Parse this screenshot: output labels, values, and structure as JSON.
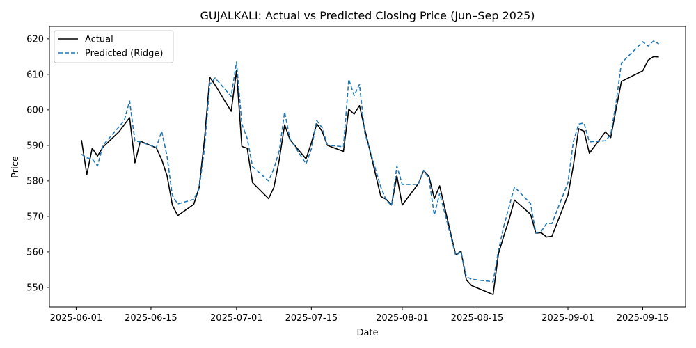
{
  "chart_data": {
    "type": "line",
    "title": "GUJALKALI: Actual vs Predicted Closing Price (Jun–Sep 2025)",
    "xlabel": "Date",
    "ylabel": "Price",
    "x_tick_labels": [
      "2025-06-01",
      "2025-06-15",
      "2025-07-01",
      "2025-07-15",
      "2025-08-01",
      "2025-08-15",
      "2025-09-01",
      "2025-09-15"
    ],
    "y_ticks": [
      550,
      560,
      570,
      580,
      590,
      600,
      610,
      620
    ],
    "xlim": [
      "2025-05-27",
      "2025-09-23"
    ],
    "ylim": [
      544.5,
      623.5
    ],
    "grid": false,
    "legend_position": "top-left",
    "series": [
      {
        "name": "Actual",
        "color": "#000000",
        "style": "solid",
        "points": [
          [
            "2025-06-02",
            591.5
          ],
          [
            "2025-06-03",
            581.8
          ],
          [
            "2025-06-04",
            589.2
          ],
          [
            "2025-06-05",
            587.0
          ],
          [
            "2025-06-06",
            589.5
          ],
          [
            "2025-06-09",
            593.8
          ],
          [
            "2025-06-10",
            595.8
          ],
          [
            "2025-06-11",
            597.8
          ],
          [
            "2025-06-12",
            585.1
          ],
          [
            "2025-06-13",
            591.2
          ],
          [
            "2025-06-16",
            589.3
          ],
          [
            "2025-06-17",
            586.0
          ],
          [
            "2025-06-18",
            581.5
          ],
          [
            "2025-06-19",
            573.2
          ],
          [
            "2025-06-20",
            570.2
          ],
          [
            "2025-06-23",
            573.4
          ],
          [
            "2025-06-24",
            578.1
          ],
          [
            "2025-06-25",
            591.6
          ],
          [
            "2025-06-26",
            609.2
          ],
          [
            "2025-06-27",
            607.0
          ],
          [
            "2025-06-30",
            599.6
          ],
          [
            "2025-07-01",
            611.0
          ],
          [
            "2025-07-02",
            589.7
          ],
          [
            "2025-07-03",
            589.2
          ],
          [
            "2025-07-04",
            579.5
          ],
          [
            "2025-07-07",
            575.0
          ],
          [
            "2025-07-08",
            578.2
          ],
          [
            "2025-07-09",
            586.0
          ],
          [
            "2025-07-10",
            595.8
          ],
          [
            "2025-07-11",
            591.6
          ],
          [
            "2025-07-14",
            586.2
          ],
          [
            "2025-07-15",
            590.7
          ],
          [
            "2025-07-16",
            596.1
          ],
          [
            "2025-07-17",
            594.0
          ],
          [
            "2025-07-18",
            590.0
          ],
          [
            "2025-07-21",
            588.3
          ],
          [
            "2025-07-22",
            600.2
          ],
          [
            "2025-07-23",
            598.8
          ],
          [
            "2025-07-24",
            601.2
          ],
          [
            "2025-07-25",
            594.5
          ],
          [
            "2025-07-28",
            575.6
          ],
          [
            "2025-07-29",
            574.8
          ],
          [
            "2025-07-30",
            573.2
          ],
          [
            "2025-07-31",
            581.4
          ],
          [
            "2025-08-01",
            573.2
          ],
          [
            "2025-08-04",
            579.2
          ],
          [
            "2025-08-05",
            582.9
          ],
          [
            "2025-08-06",
            581.3
          ],
          [
            "2025-08-07",
            575.0
          ],
          [
            "2025-08-08",
            578.6
          ],
          [
            "2025-08-11",
            559.2
          ],
          [
            "2025-08-12",
            560.2
          ],
          [
            "2025-08-13",
            552.1
          ],
          [
            "2025-08-14",
            550.5
          ],
          [
            "2025-08-18",
            548.0
          ],
          [
            "2025-08-19",
            559.5
          ],
          [
            "2025-08-20",
            564.5
          ],
          [
            "2025-08-21",
            569.2
          ],
          [
            "2025-08-22",
            574.6
          ],
          [
            "2025-08-25",
            570.6
          ],
          [
            "2025-08-26",
            565.3
          ],
          [
            "2025-08-27",
            565.4
          ],
          [
            "2025-08-28",
            564.2
          ],
          [
            "2025-08-29",
            564.4
          ],
          [
            "2025-09-01",
            576.0
          ],
          [
            "2025-09-02",
            584.2
          ],
          [
            "2025-09-03",
            594.7
          ],
          [
            "2025-09-04",
            594.0
          ],
          [
            "2025-09-05",
            587.8
          ],
          [
            "2025-09-08",
            593.8
          ],
          [
            "2025-09-09",
            592.2
          ],
          [
            "2025-09-10",
            600.2
          ],
          [
            "2025-09-11",
            608.0
          ],
          [
            "2025-09-15",
            611.0
          ],
          [
            "2025-09-16",
            614.0
          ],
          [
            "2025-09-17",
            615.0
          ],
          [
            "2025-09-18",
            614.9
          ]
        ]
      },
      {
        "name": "Predicted (Ridge)",
        "color": "#1f77b4",
        "style": "dashed",
        "points": [
          [
            "2025-06-02",
            587.5
          ],
          [
            "2025-06-03",
            586.5
          ],
          [
            "2025-06-04",
            586.2
          ],
          [
            "2025-06-05",
            584.2
          ],
          [
            "2025-06-06",
            590.0
          ],
          [
            "2025-06-09",
            595.2
          ],
          [
            "2025-06-10",
            597.0
          ],
          [
            "2025-06-11",
            602.5
          ],
          [
            "2025-06-12",
            591.2
          ],
          [
            "2025-06-13",
            591.0
          ],
          [
            "2025-06-16",
            589.4
          ],
          [
            "2025-06-17",
            594.0
          ],
          [
            "2025-06-18",
            587.0
          ],
          [
            "2025-06-19",
            575.8
          ],
          [
            "2025-06-20",
            573.5
          ],
          [
            "2025-06-23",
            574.8
          ],
          [
            "2025-06-24",
            577.8
          ],
          [
            "2025-06-25",
            589.0
          ],
          [
            "2025-06-26",
            607.2
          ],
          [
            "2025-06-27",
            609.0
          ],
          [
            "2025-06-30",
            603.8
          ],
          [
            "2025-07-01",
            613.5
          ],
          [
            "2025-07-02",
            596.0
          ],
          [
            "2025-07-03",
            592.0
          ],
          [
            "2025-07-04",
            584.0
          ],
          [
            "2025-07-07",
            580.0
          ],
          [
            "2025-07-08",
            583.5
          ],
          [
            "2025-07-09",
            588.5
          ],
          [
            "2025-07-10",
            599.4
          ],
          [
            "2025-07-11",
            591.8
          ],
          [
            "2025-07-14",
            584.8
          ],
          [
            "2025-07-15",
            589.0
          ],
          [
            "2025-07-16",
            597.0
          ],
          [
            "2025-07-17",
            595.0
          ],
          [
            "2025-07-18",
            590.1
          ],
          [
            "2025-07-21",
            589.6
          ],
          [
            "2025-07-22",
            608.6
          ],
          [
            "2025-07-23",
            604.0
          ],
          [
            "2025-07-24",
            607.2
          ],
          [
            "2025-07-25",
            593.5
          ],
          [
            "2025-07-28",
            578.2
          ],
          [
            "2025-07-29",
            574.6
          ],
          [
            "2025-07-30",
            573.0
          ],
          [
            "2025-07-31",
            584.2
          ],
          [
            "2025-08-01",
            579.0
          ],
          [
            "2025-08-04",
            579.0
          ],
          [
            "2025-08-05",
            583.0
          ],
          [
            "2025-08-06",
            580.6
          ],
          [
            "2025-08-07",
            570.3
          ],
          [
            "2025-08-08",
            576.5
          ],
          [
            "2025-08-11",
            559.0
          ],
          [
            "2025-08-12",
            560.0
          ],
          [
            "2025-08-13",
            553.0
          ],
          [
            "2025-08-14",
            552.3
          ],
          [
            "2025-08-18",
            551.6
          ],
          [
            "2025-08-19",
            560.5
          ],
          [
            "2025-08-20",
            567.2
          ],
          [
            "2025-08-21",
            572.8
          ],
          [
            "2025-08-22",
            578.3
          ],
          [
            "2025-08-25",
            573.6
          ],
          [
            "2025-08-26",
            565.3
          ],
          [
            "2025-08-27",
            565.8
          ],
          [
            "2025-08-28",
            568.0
          ],
          [
            "2025-08-29",
            568.0
          ],
          [
            "2025-09-01",
            579.5
          ],
          [
            "2025-09-02",
            591.0
          ],
          [
            "2025-09-03",
            596.0
          ],
          [
            "2025-09-04",
            596.3
          ],
          [
            "2025-09-05",
            591.0
          ],
          [
            "2025-09-08",
            591.3
          ],
          [
            "2025-09-09",
            593.0
          ],
          [
            "2025-09-10",
            602.0
          ],
          [
            "2025-09-11",
            613.2
          ],
          [
            "2025-09-15",
            619.2
          ],
          [
            "2025-09-16",
            618.0
          ],
          [
            "2025-09-17",
            619.4
          ],
          [
            "2025-09-18",
            618.6
          ]
        ]
      }
    ]
  }
}
